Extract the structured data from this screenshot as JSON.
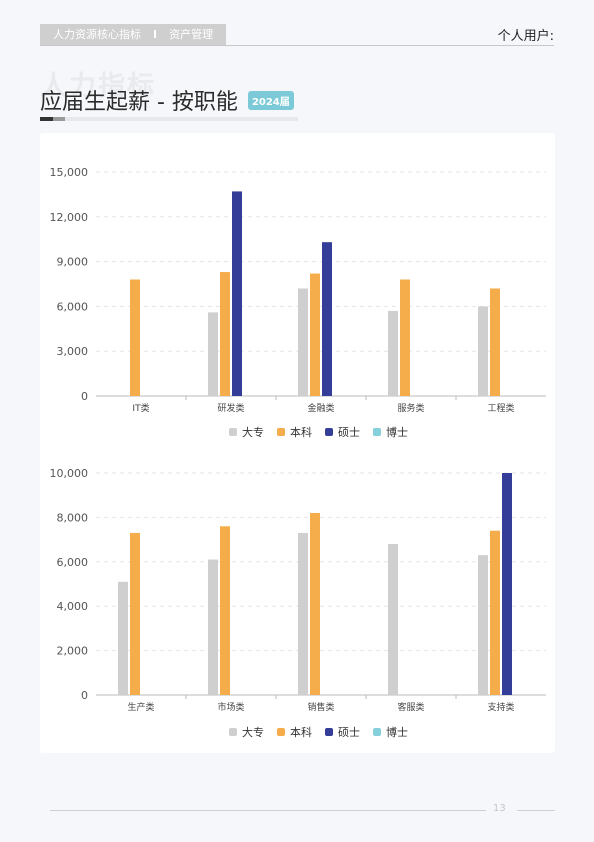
{
  "header": {
    "tag_left": "人力资源核心指标",
    "tag_sep": "I",
    "tag_right": "资产管理",
    "user": "个人用户:"
  },
  "page": {
    "watermark": "人力指标",
    "title": "应届生起薪 - 按职能",
    "year_badge": "2024届",
    "page_number": "13"
  },
  "colors": {
    "大专": "#cfcfcf",
    "本科": "#f5ad4b",
    "硕士": "#343e98",
    "博士": "#86d0dc"
  },
  "chart_data": [
    {
      "type": "bar",
      "categories": [
        "IT类",
        "研发类",
        "金融类",
        "服务类",
        "工程类"
      ],
      "ylim": [
        0,
        15000
      ],
      "yticks": [
        "0",
        "3,000",
        "6,000",
        "9,000",
        "12,000",
        "15,000"
      ],
      "ytick_values": [
        0,
        3000,
        6000,
        9000,
        12000,
        15000
      ],
      "legend": "bottom-center",
      "grid": true,
      "series": [
        {
          "name": "大专",
          "values": [
            null,
            5600,
            7200,
            5700,
            6000
          ]
        },
        {
          "name": "本科",
          "values": [
            7800,
            8300,
            8200,
            7800,
            7200
          ]
        },
        {
          "name": "硕士",
          "values": [
            null,
            13700,
            10300,
            null,
            null
          ]
        },
        {
          "name": "博士",
          "values": [
            null,
            null,
            null,
            null,
            null
          ]
        }
      ]
    },
    {
      "type": "bar",
      "categories": [
        "生产类",
        "市场类",
        "销售类",
        "客服类",
        "支持类"
      ],
      "ylim": [
        0,
        10000
      ],
      "yticks": [
        "0",
        "2,000",
        "4,000",
        "6,000",
        "8,000",
        "10,000"
      ],
      "ytick_values": [
        0,
        2000,
        4000,
        6000,
        8000,
        10000
      ],
      "legend": "bottom-center",
      "grid": true,
      "series": [
        {
          "name": "大专",
          "values": [
            5100,
            6100,
            7300,
            6800,
            6300
          ]
        },
        {
          "name": "本科",
          "values": [
            7300,
            7600,
            8200,
            null,
            7400
          ]
        },
        {
          "name": "硕士",
          "values": [
            null,
            null,
            null,
            null,
            10000
          ]
        },
        {
          "name": "博士",
          "values": [
            null,
            null,
            null,
            null,
            null
          ]
        }
      ]
    }
  ]
}
